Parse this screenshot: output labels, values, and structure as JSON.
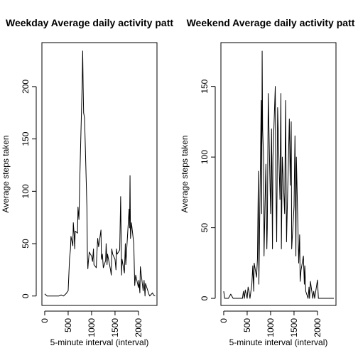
{
  "chart_data": [
    {
      "type": "line",
      "title": "Weekday Average daily activity patt",
      "xlabel": "5-minute interval (interval)",
      "ylabel": "Average steps taken",
      "xlim": [
        -60,
        2395
      ],
      "ylim": [
        -9,
        242
      ],
      "xticks": [
        0,
        500,
        1000,
        1500,
        2000
      ],
      "yticks": [
        0,
        50,
        100,
        150,
        200
      ],
      "xtick_labels": [
        "0",
        "500",
        "1000",
        "1500",
        "2000"
      ],
      "ytick_labels": [
        "0",
        "50",
        "100",
        "150",
        "200"
      ],
      "grid": false,
      "series": [
        {
          "x": [
            0,
            50,
            100,
            150,
            200,
            250,
            300,
            350,
            400,
            450,
            500,
            530,
            550,
            560,
            600,
            610,
            630,
            640,
            650,
            700,
            710,
            730,
            750,
            800,
            810,
            820,
            830,
            850,
            900,
            910,
            920,
            930,
            950,
            1000,
            1020,
            1040,
            1050,
            1100,
            1110,
            1130,
            1150,
            1200,
            1210,
            1230,
            1250,
            1300,
            1310,
            1330,
            1340,
            1400,
            1420,
            1430,
            1450,
            1500,
            1520,
            1530,
            1545,
            1600,
            1620,
            1640,
            1650,
            1700,
            1720,
            1730,
            1800,
            1810,
            1820,
            1830,
            1850,
            1900,
            1920,
            1940,
            2000,
            2010,
            2030,
            2040,
            2100,
            2120,
            2140,
            2150,
            2200,
            2220,
            2240,
            2300,
            2320,
            2355
          ],
          "y": [
            2,
            0,
            0,
            0,
            0,
            0,
            0,
            1,
            0,
            2,
            5,
            36,
            45,
            57,
            48,
            70,
            57,
            45,
            62,
            60,
            85,
            73,
            115,
            205,
            234,
            200,
            175,
            170,
            85,
            40,
            26,
            32,
            42,
            38,
            33,
            45,
            30,
            27,
            38,
            55,
            47,
            63,
            35,
            40,
            27,
            34,
            50,
            30,
            40,
            26,
            20,
            45,
            40,
            35,
            25,
            45,
            40,
            44,
            95,
            20,
            35,
            22,
            50,
            30,
            83,
            65,
            115,
            55,
            70,
            50,
            10,
            20,
            8,
            15,
            3,
            28,
            5,
            15,
            0,
            12,
            5,
            2,
            0,
            3,
            1,
            0
          ]
        }
      ]
    },
    {
      "type": "line",
      "title": "Weekend Average daily activity patt",
      "xlabel": "5-minute interval (interval)",
      "ylabel": "Average steps taken",
      "xlim": [
        -60,
        2395
      ],
      "ylim": [
        -5,
        181
      ],
      "xticks": [
        0,
        500,
        1000,
        1500,
        2000
      ],
      "yticks": [
        0,
        50,
        100,
        150
      ],
      "xtick_labels": [
        "0",
        "500",
        "1000",
        "1500",
        "2000"
      ],
      "ytick_labels": [
        "0",
        "50",
        "100",
        "150"
      ],
      "grid": false,
      "series": [
        {
          "x": [
            0,
            20,
            40,
            100,
            150,
            200,
            250,
            300,
            350,
            400,
            420,
            440,
            460,
            480,
            500,
            520,
            540,
            560,
            600,
            620,
            640,
            650,
            700,
            720,
            740,
            750,
            800,
            810,
            820,
            830,
            850,
            860,
            880,
            900,
            920,
            930,
            950,
            1000,
            1020,
            1040,
            1050,
            1100,
            1110,
            1130,
            1150,
            1200,
            1220,
            1230,
            1250,
            1300,
            1320,
            1340,
            1400,
            1420,
            1440,
            1450,
            1500,
            1520,
            1540,
            1550,
            1600,
            1620,
            1630,
            1650,
            1700,
            1720,
            1730,
            1750,
            1800,
            1820,
            1830,
            1850,
            1900,
            1920,
            1940,
            2000,
            2020,
            2050,
            2100,
            2150,
            2200,
            2250,
            2300,
            2350
          ],
          "y": [
            5,
            0,
            0,
            0,
            3,
            0,
            0,
            0,
            0,
            0,
            5,
            0,
            6,
            3,
            0,
            8,
            5,
            0,
            10,
            23,
            5,
            25,
            15,
            28,
            90,
            10,
            140,
            60,
            175,
            120,
            100,
            30,
            65,
            95,
            35,
            50,
            145,
            60,
            120,
            35,
            100,
            150,
            90,
            40,
            135,
            70,
            145,
            35,
            100,
            60,
            140,
            40,
            127,
            80,
            125,
            35,
            65,
            115,
            30,
            100,
            25,
            45,
            12,
            20,
            30,
            10,
            23,
            5,
            0,
            8,
            0,
            12,
            0,
            5,
            0,
            13,
            0,
            0,
            0,
            0,
            0,
            0,
            0,
            0
          ]
        }
      ]
    }
  ]
}
